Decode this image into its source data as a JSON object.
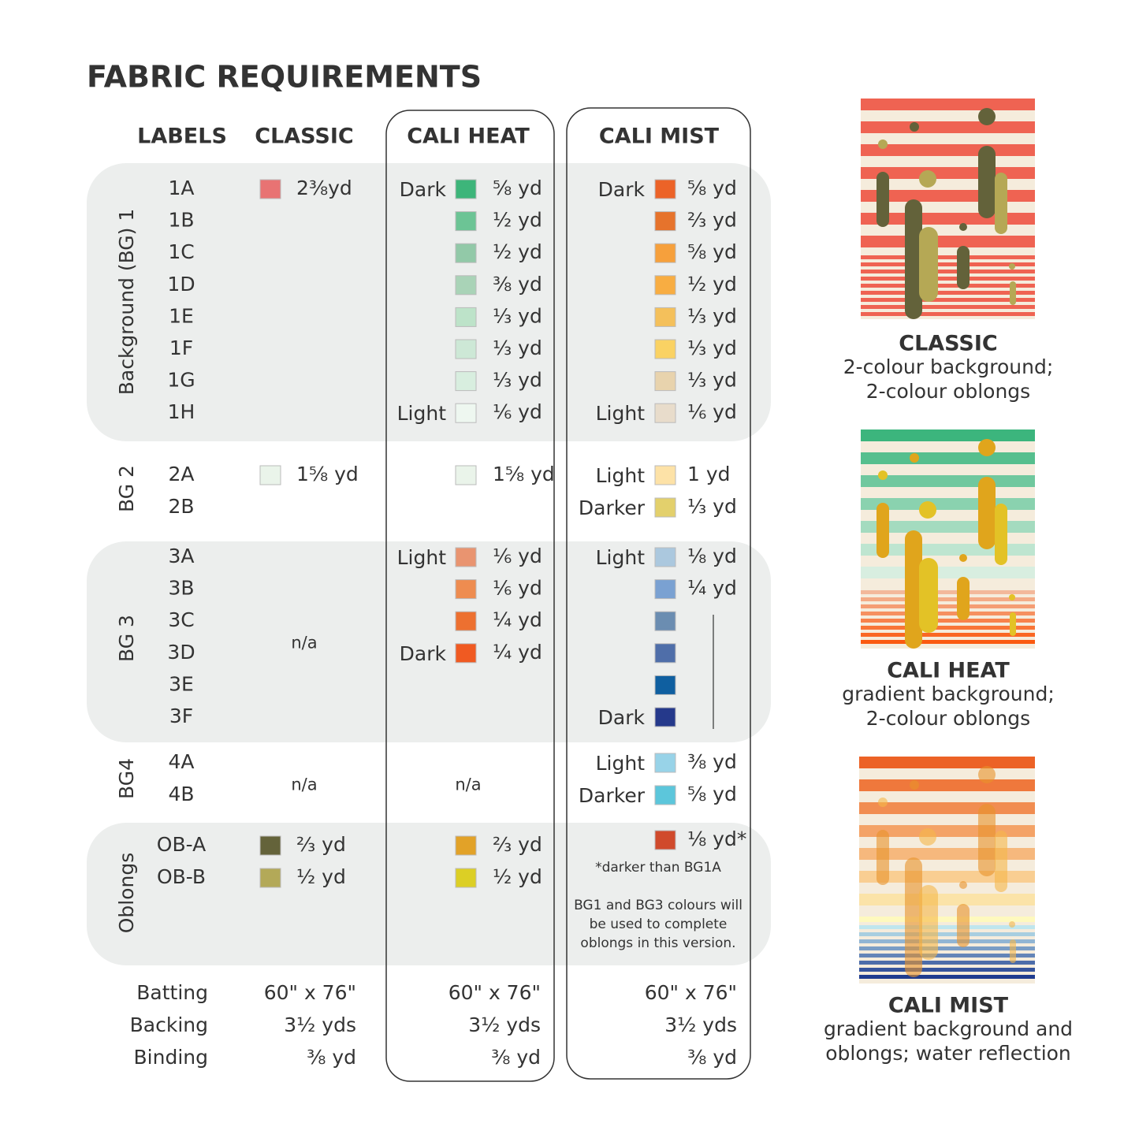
{
  "header": {
    "title": "FABRIC REQUIREMENTS"
  },
  "columns": [
    "LABELS",
    "CLASSIC",
    "CALI HEAT",
    "CALI MIST"
  ],
  "groups": [
    {
      "name": "Background (BG) 1",
      "labels": [
        "1A",
        "1B",
        "1C",
        "1D",
        "1E",
        "1F",
        "1G",
        "1H"
      ],
      "classic": [
        {
          "color": "#e87373",
          "amount": "2⅜yd"
        }
      ],
      "cali_heat": [
        {
          "tone": "Dark",
          "color": "#3db57a",
          "amount": "⅝ yd"
        },
        {
          "color": "#6cc495",
          "amount": "½ yd"
        },
        {
          "color": "#92c9a8",
          "amount": "½ yd"
        },
        {
          "color": "#a9d3b7",
          "amount": "⅜ yd"
        },
        {
          "color": "#bde3c9",
          "amount": "⅓ yd"
        },
        {
          "color": "#cde8d6",
          "amount": "⅓ yd"
        },
        {
          "color": "#d8eedf",
          "amount": "⅓ yd"
        },
        {
          "tone": "Light",
          "color": "#eef7f0",
          "amount": "⅙ yd"
        }
      ],
      "cali_mist": [
        {
          "tone": "Dark",
          "color": "#ec6328",
          "amount": "⅝ yd"
        },
        {
          "color": "#e6732c",
          "amount": "⅔ yd"
        },
        {
          "color": "#f6a03c",
          "amount": "⅝ yd"
        },
        {
          "color": "#f8ad42",
          "amount": "½ yd"
        },
        {
          "color": "#f4c05b",
          "amount": "⅓ yd"
        },
        {
          "color": "#fad263",
          "amount": "⅓ yd"
        },
        {
          "color": "#e8d3ad",
          "amount": "⅓ yd"
        },
        {
          "tone": "Light",
          "color": "#e8dccb",
          "amount": "⅙ yd"
        }
      ]
    },
    {
      "name": "BG 2",
      "labels": [
        "2A",
        "2B"
      ],
      "classic": [
        {
          "color": "#eaf4ea",
          "amount": "1⅝ yd"
        }
      ],
      "cali_heat": [
        {
          "color": "#eaf4ea",
          "amount": "1⅝ yd"
        }
      ],
      "cali_mist": [
        {
          "tone": "Light",
          "color": "#fde2a7",
          "amount": "1 yd"
        },
        {
          "tone": "Darker",
          "color": "#e3d06c",
          "amount": "⅓ yd"
        }
      ]
    },
    {
      "name": "BG 3",
      "labels": [
        "3A",
        "3B",
        "3C",
        "3D",
        "3E",
        "3F"
      ],
      "classic": "n/a",
      "cali_heat": [
        {
          "tone": "Light",
          "color": "#e99470",
          "amount": "⅙ yd"
        },
        {
          "color": "#ee8c50",
          "amount": "⅙ yd"
        },
        {
          "color": "#ed7030",
          "amount": "¼ yd"
        },
        {
          "tone": "Dark",
          "color": "#f05a22",
          "amount": "¼ yd"
        }
      ],
      "cali_mist": [
        {
          "tone": "Light",
          "color": "#abc8de",
          "amount": "⅛ yd"
        },
        {
          "color": "#7aa1d2",
          "amount": "¼ yd"
        },
        {
          "color": "#6b8db1"
        },
        {
          "color": "#4f6ea9"
        },
        {
          "color": "#0f5fa0"
        },
        {
          "tone": "Dark",
          "color": "#25398b"
        }
      ]
    },
    {
      "name": "BG4",
      "labels": [
        "4A",
        "4B"
      ],
      "classic": "n/a",
      "cali_heat": "n/a",
      "cali_mist": [
        {
          "tone": "Light",
          "color": "#98d3e8",
          "amount": "⅜ yd"
        },
        {
          "tone": "Darker",
          "color": "#5cc6db",
          "amount": "⅝ yd"
        }
      ]
    },
    {
      "name": "Oblongs",
      "labels": [
        "OB-A",
        "OB-B"
      ],
      "classic": [
        {
          "color": "#64633a",
          "amount": "⅔ yd"
        },
        {
          "color": "#b3a958",
          "amount": "½ yd"
        }
      ],
      "cali_heat": [
        {
          "color": "#e2a228",
          "amount": "⅔ yd"
        },
        {
          "color": "#dccf25",
          "amount": "½ yd"
        }
      ],
      "cali_mist": [
        {
          "color": "#d04a2c",
          "amount": "⅛ yd*"
        }
      ]
    }
  ],
  "mist_notes": [
    "*darker than BG1A",
    "BG1 and BG3 colours will",
    "be used to complete",
    "oblongs in this version."
  ],
  "footer": [
    {
      "label": "Batting",
      "classic": "60\" x 76\"",
      "cali_heat": "60\" x 76\"",
      "cali_mist": "60\" x 76\""
    },
    {
      "label": "Backing",
      "classic": "3½ yds",
      "cali_heat": "3½ yds",
      "cali_mist": "3½ yds"
    },
    {
      "label": "Binding",
      "classic": "⅜ yd",
      "cali_heat": "⅜ yd",
      "cali_mist": "⅜ yd"
    }
  ],
  "versions": [
    {
      "name": "CLASSIC",
      "description": [
        "2-colour background;",
        "2-colour oblongs"
      ]
    },
    {
      "name": "CALI HEAT",
      "description": [
        "gradient background;",
        "2-colour oblongs"
      ]
    },
    {
      "name": "CALI MIST",
      "description": [
        "gradient background and",
        "oblongs; water reflection"
      ]
    }
  ]
}
